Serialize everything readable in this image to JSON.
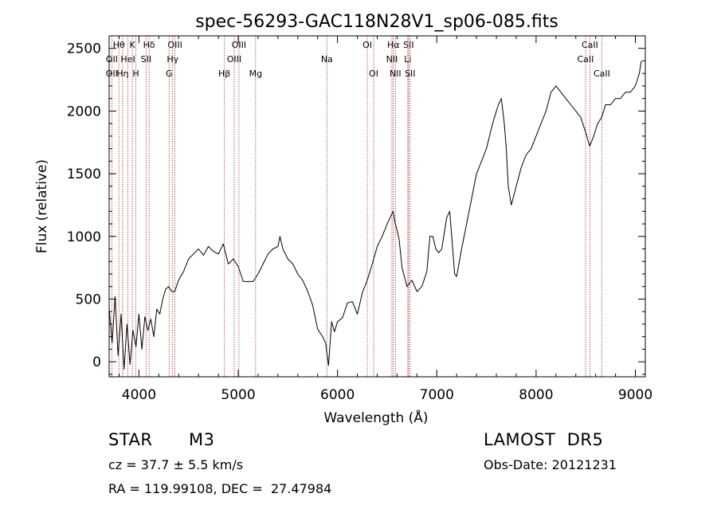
{
  "chart_data": {
    "type": "line",
    "title": "spec-56293-GAC118N28V1_sp06-085.fits",
    "xlabel": "Wavelength (Å)",
    "ylabel": "Flux (relative)",
    "xlim": [
      3700,
      9100
    ],
    "ylim": [
      -120,
      2600
    ],
    "x_ticks": [
      4000,
      5000,
      6000,
      7000,
      8000,
      9000
    ],
    "x_tick_labels": [
      "4000",
      "5000",
      "6000",
      "7000",
      "8000",
      "9000"
    ],
    "y_ticks": [
      0,
      500,
      1000,
      1500,
      2000,
      2500
    ],
    "y_tick_labels": [
      "0",
      "500",
      "1000",
      "1500",
      "2000",
      "2500"
    ],
    "series": [
      {
        "color": "#000000",
        "x": [
          3700,
          3730,
          3760,
          3790,
          3820,
          3850,
          3880,
          3910,
          3940,
          3970,
          4000,
          4030,
          4060,
          4090,
          4120,
          4150,
          4180,
          4210,
          4240,
          4270,
          4300,
          4330,
          4360,
          4400,
          4450,
          4500,
          4550,
          4600,
          4650,
          4700,
          4750,
          4800,
          4850,
          4900,
          4950,
          5000,
          5050,
          5100,
          5150,
          5200,
          5250,
          5300,
          5350,
          5400,
          5420,
          5450,
          5500,
          5550,
          5600,
          5650,
          5700,
          5750,
          5800,
          5850,
          5880,
          5910,
          5940,
          5970,
          6000,
          6050,
          6100,
          6150,
          6200,
          6250,
          6300,
          6350,
          6400,
          6450,
          6500,
          6530,
          6560,
          6580,
          6600,
          6620,
          6650,
          6700,
          6750,
          6800,
          6850,
          6900,
          6930,
          6960,
          6990,
          7020,
          7050,
          7080,
          7100,
          7130,
          7150,
          7180,
          7200,
          7250,
          7300,
          7350,
          7400,
          7450,
          7500,
          7550,
          7580,
          7600,
          7620,
          7650,
          7680,
          7700,
          7720,
          7750,
          7800,
          7850,
          7900,
          7950,
          8000,
          8050,
          8100,
          8150,
          8200,
          8250,
          8300,
          8350,
          8400,
          8450,
          8500,
          8540,
          8580,
          8620,
          8660,
          8700,
          8750,
          8800,
          8850,
          8900,
          8950,
          9000,
          9020,
          9040,
          9060
        ],
        "y": [
          430,
          150,
          520,
          50,
          380,
          -60,
          300,
          -20,
          250,
          120,
          380,
          100,
          360,
          250,
          340,
          200,
          420,
          380,
          500,
          580,
          600,
          560,
          560,
          650,
          720,
          820,
          860,
          900,
          850,
          920,
          880,
          860,
          940,
          780,
          820,
          760,
          640,
          640,
          640,
          700,
          780,
          860,
          900,
          920,
          1000,
          900,
          820,
          780,
          700,
          650,
          560,
          450,
          260,
          200,
          150,
          -30,
          320,
          240,
          320,
          350,
          470,
          480,
          380,
          550,
          650,
          780,
          920,
          1000,
          1100,
          1150,
          1200,
          1110,
          1050,
          980,
          750,
          600,
          650,
          560,
          600,
          720,
          1000,
          1000,
          900,
          870,
          900,
          1050,
          1150,
          1200,
          1000,
          700,
          680,
          900,
          1100,
          1300,
          1500,
          1600,
          1700,
          1860,
          1950,
          2000,
          2050,
          2100,
          1900,
          1700,
          1400,
          1250,
          1400,
          1550,
          1650,
          1700,
          1800,
          1900,
          2000,
          2150,
          2200,
          2150,
          2100,
          2050,
          2000,
          1950,
          1830,
          1720,
          1800,
          1900,
          1950,
          2050,
          2050,
          2100,
          2100,
          2150,
          2150,
          2200,
          2250,
          2300,
          2400
        ]
      }
    ],
    "lines": [
      {
        "label": "Hθ",
        "x": 3798,
        "row": 0
      },
      {
        "label": "OII",
        "x": 3727,
        "row": 1
      },
      {
        "label": "OII",
        "x": 3727,
        "row": 2
      },
      {
        "label": "K",
        "x": 3934,
        "row": 0
      },
      {
        "label": "HeI",
        "x": 3889,
        "row": 1
      },
      {
        "label": "Hη",
        "x": 3835,
        "row": 2
      },
      {
        "label": "H",
        "x": 3969,
        "row": 2
      },
      {
        "label": "Hδ",
        "x": 4102,
        "row": 0
      },
      {
        "label": "SII",
        "x": 4072,
        "row": 1
      },
      {
        "label": "OIII",
        "x": 4363,
        "row": 0
      },
      {
        "label": "Hγ",
        "x": 4340,
        "row": 1
      },
      {
        "label": "G",
        "x": 4304,
        "row": 2
      },
      {
        "label": "Hβ",
        "x": 4861,
        "row": 2
      },
      {
        "label": "OIII",
        "x": 5007,
        "row": 0
      },
      {
        "label": "OIII",
        "x": 4959,
        "row": 1
      },
      {
        "label": "Mg",
        "x": 5175,
        "row": 2
      },
      {
        "label": "Na",
        "x": 5893,
        "row": 1
      },
      {
        "label": "OI",
        "x": 6300,
        "row": 0
      },
      {
        "label": "OI",
        "x": 6364,
        "row": 2
      },
      {
        "label": "Hα",
        "x": 6563,
        "row": 0
      },
      {
        "label": "SII",
        "x": 6716,
        "row": 0
      },
      {
        "label": "NII",
        "x": 6548,
        "row": 1
      },
      {
        "label": "Li",
        "x": 6708,
        "row": 1
      },
      {
        "label": "NII",
        "x": 6583,
        "row": 2
      },
      {
        "label": "SII",
        "x": 6731,
        "row": 2
      },
      {
        "label": "CaII",
        "x": 8542,
        "row": 0
      },
      {
        "label": "CaII",
        "x": 8498,
        "row": 1
      },
      {
        "label": "CaII",
        "x": 8662,
        "row": 2
      }
    ],
    "line_color": "#b03030"
  },
  "info": {
    "object_class": "STAR",
    "subclass": "M3",
    "survey": "LAMOST  DR5",
    "redshift": "cz = 37.7 ± 5.5 km/s",
    "obs_date": "Obs-Date: 20121231",
    "coords": "RA = 119.99108, DEC =  27.47984"
  }
}
